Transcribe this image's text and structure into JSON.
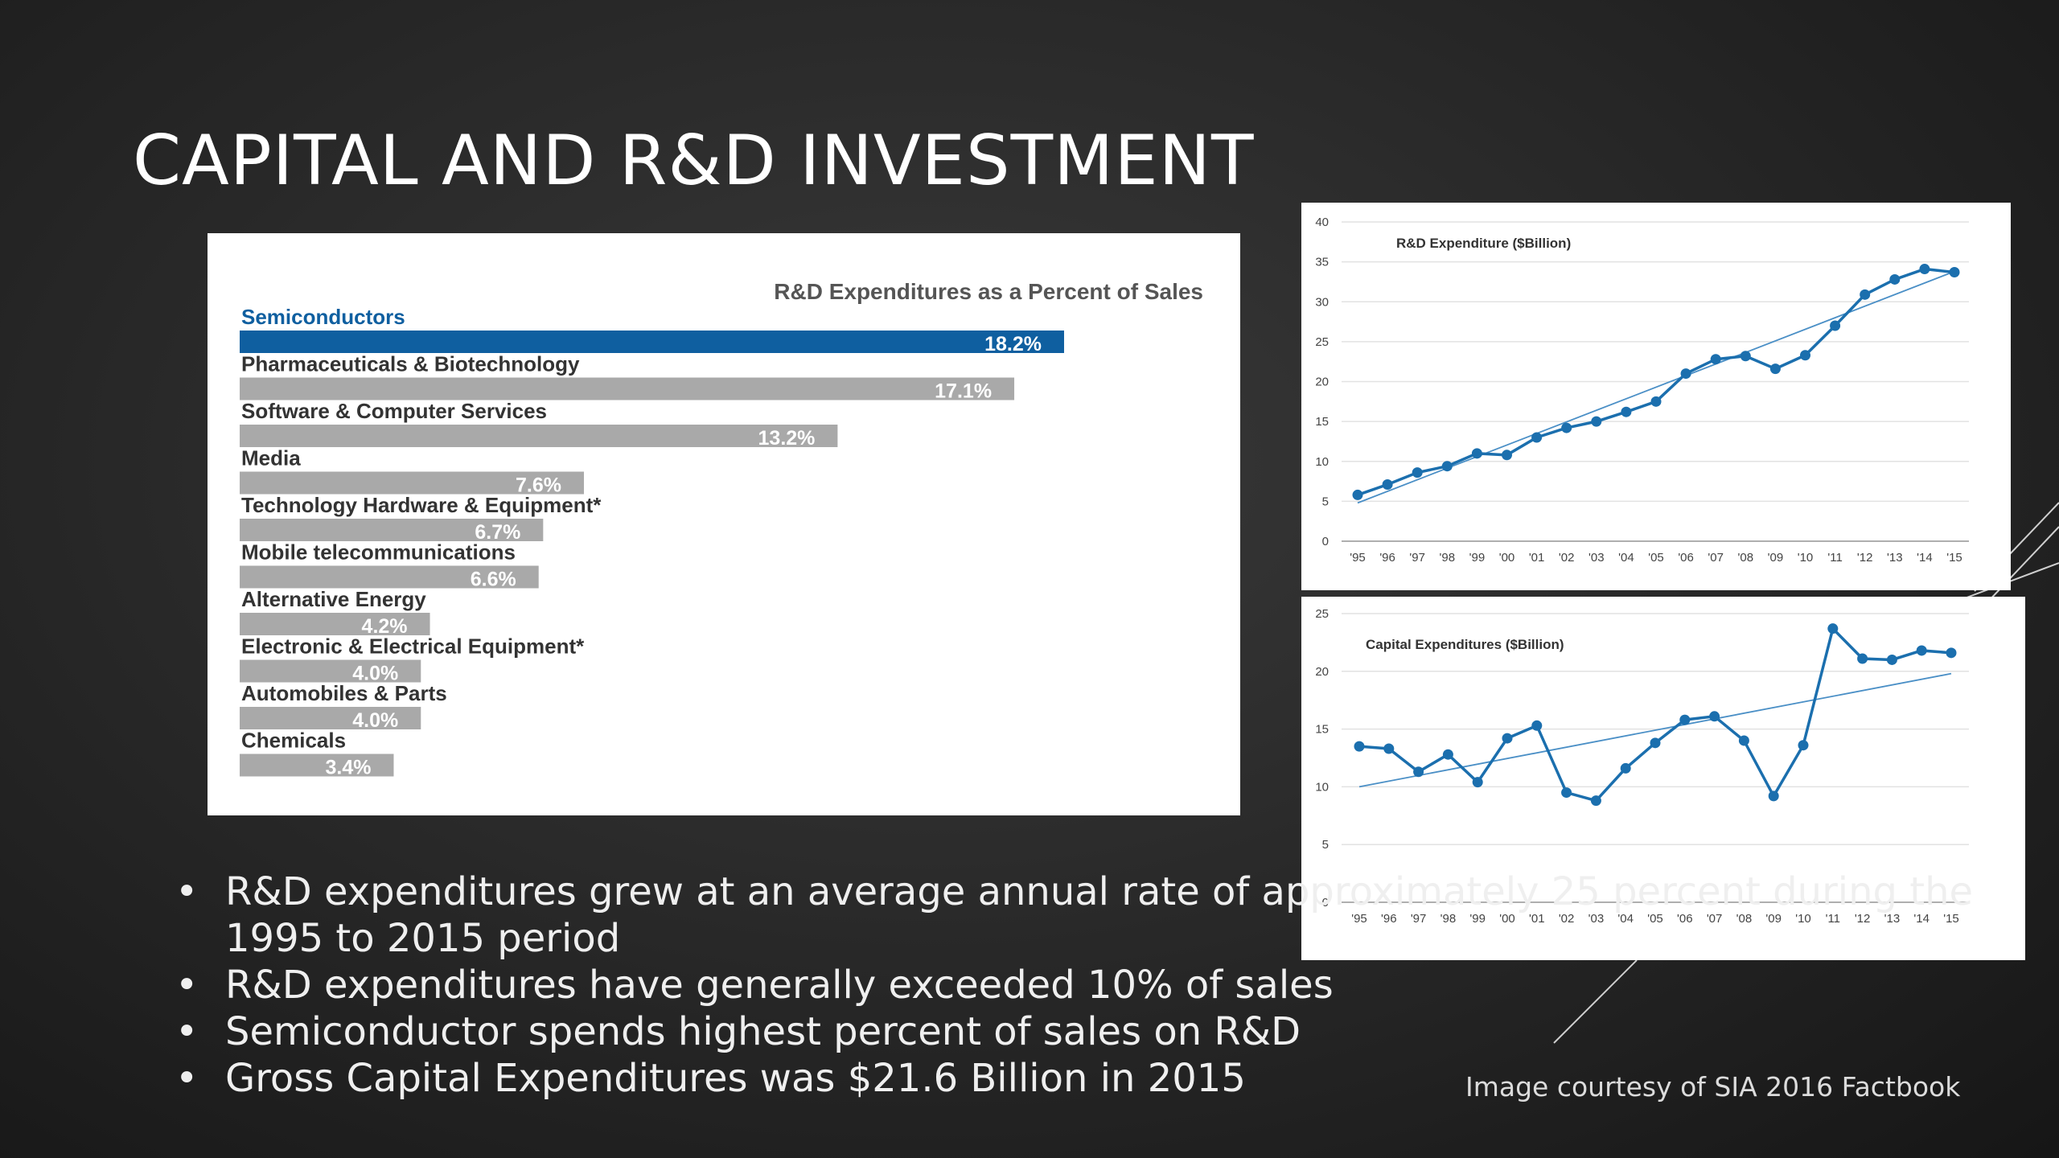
{
  "slide": {
    "title": "CAPITAL AND R&D INVESTMENT",
    "bullets": [
      "R&D expenditures grew at an average annual rate of approximately 25 percent during the 1995 to 2015 period",
      "R&D expenditures have generally exceeded 10% of sales",
      " Semiconductor spends highest percent  of sales on R&D",
      "Gross Capital Expenditures was $21.6 Billion in 2015"
    ],
    "bullet_symbol": "•",
    "credit": "Image courtesy of SIA 2016 Factbook"
  },
  "colors": {
    "highlight": "#0f5fa0",
    "bar": "#a9a9a9",
    "line": "#1b6fae",
    "trend": "#4a8fc6"
  },
  "chart_data": [
    {
      "type": "bar",
      "title": "R&D Expenditures as a Percent of Sales",
      "categories": [
        "Semiconductors",
        "Pharmaceuticals & Biotechnology",
        "Software & Computer Services",
        "Media",
        "Technology Hardware & Equipment*",
        "Mobile telecommunications",
        "Alternative Energy",
        "Electronic & Electrical Equipment*",
        "Automobiles & Parts",
        "Chemicals"
      ],
      "values": [
        18.2,
        17.1,
        13.2,
        7.6,
        6.7,
        6.6,
        4.2,
        4.0,
        4.0,
        3.4
      ],
      "labels": [
        "18.2%",
        "17.1%",
        "13.2%",
        "7.6%",
        "6.7%",
        "6.6%",
        "4.2%",
        "4.0%",
        "4.0%",
        "3.4%"
      ],
      "highlight_index": 0,
      "xlim": [
        0,
        20
      ]
    },
    {
      "type": "line",
      "title": "R&D Expenditure ($Billion)",
      "x": [
        "'95",
        "'96",
        "'97",
        "'98",
        "'99",
        "'00",
        "'01",
        "'02",
        "'03",
        "'04",
        "'05",
        "'06",
        "'07",
        "'08",
        "'09",
        "'10",
        "'11",
        "'12",
        "'13",
        "'14",
        "'15"
      ],
      "values": [
        5.8,
        7.1,
        8.6,
        9.4,
        11.0,
        10.8,
        13.0,
        14.2,
        15.0,
        16.2,
        17.5,
        21.0,
        22.8,
        23.2,
        21.6,
        23.3,
        27.0,
        30.9,
        32.8,
        34.1,
        33.7
      ],
      "trend": [
        4.8,
        33.8
      ],
      "ylim": [
        0,
        40
      ],
      "yticks": [
        "0",
        "5",
        "10",
        "15",
        "20",
        "25",
        "30",
        "35",
        "40"
      ]
    },
    {
      "type": "line",
      "title": "Capital Expenditures ($Billion)",
      "x": [
        "'95",
        "'96",
        "'97",
        "'98",
        "'99",
        "'00",
        "'01",
        "'02",
        "'03",
        "'04",
        "'05",
        "'06",
        "'07",
        "'08",
        "'09",
        "'10",
        "'11",
        "'12",
        "'13",
        "'14",
        "'15"
      ],
      "values": [
        13.5,
        13.3,
        11.3,
        12.8,
        10.4,
        14.2,
        15.3,
        9.5,
        8.8,
        11.6,
        13.8,
        15.8,
        16.1,
        14.0,
        9.2,
        13.6,
        23.7,
        21.1,
        21.0,
        21.8,
        21.6
      ],
      "trend": [
        10.0,
        19.8
      ],
      "ylim": [
        0,
        25
      ],
      "yticks": [
        "0",
        "5",
        "10",
        "15",
        "20",
        "25"
      ]
    }
  ]
}
